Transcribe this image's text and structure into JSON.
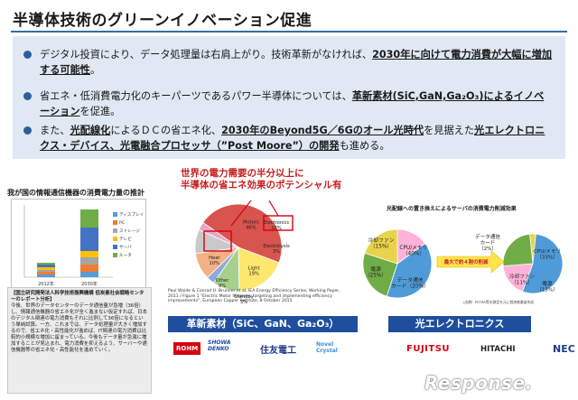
{
  "header": {
    "title": "半導体技術のグリーンイノベーション促進"
  },
  "bullets": [
    {
      "parts": [
        {
          "t": "デジタル投資により、データ処理量は右肩上がり。技術革新がなければ、",
          "s": "plain"
        },
        {
          "t": "2030年に向けて電力消費が大幅に増加する可能性",
          "s": "bold"
        },
        {
          "t": "。",
          "s": "plain"
        }
      ]
    },
    {
      "parts": [
        {
          "t": "省エネ・低消費電力化のキーパーツであるパワー半導体については、",
          "s": "plain"
        },
        {
          "t": "革新素材(SiC,GaN,Ga₂O₃)によるイノベーション",
          "s": "bold"
        },
        {
          "t": "を促進。",
          "s": "plain"
        }
      ]
    },
    {
      "parts": [
        {
          "t": "また、",
          "s": "plain"
        },
        {
          "t": "光配線化",
          "s": "bold"
        },
        {
          "t": "によるＤＣの省エネ化、",
          "s": "plain"
        },
        {
          "t": "2030年のBeyond5G／6Gのオール光時代",
          "s": "bold"
        },
        {
          "t": "を見据えた",
          "s": "plain"
        },
        {
          "t": "光エレクトロニクス・デバイス、光電融合プロセッサ（”Post Moore”）の開発",
          "s": "bold"
        },
        {
          "t": "も進める。",
          "s": "plain"
        }
      ]
    }
  ],
  "left_panel": {
    "title": "我が国の情報通信機器の消費電力量の推計",
    "chart": {
      "categories": [
        "2012年",
        "2030年"
      ],
      "legend": [
        "ディスプレイ",
        "PC",
        "ストレージ",
        "テレビ",
        "サーバ",
        "ルータ"
      ],
      "colors": [
        "#5b9bd5",
        "#ed7d31",
        "#a5a5a5",
        "#ffc000",
        "#4472c4",
        "#70ad47"
      ]
    },
    "box_heading": "【国立研究開発法人科学技術振興機構 低炭素社会戦略センターのレポート分析】",
    "box_text": "今後、世界のデータセンターのデータ通信量が急増（36倍）し、情報通信機器の省エネ化が全く進まない仮定すれば、日本のデジタル関連の電力消費もそれに比例して36倍になるという単純試算。一方、これまでは、データ処理量が大きく増加するので、省エネ化・高性能化が進めば、IT関連の電力消費は比較的小規模な増加に留まっている。今後もデータ量が急激に増加することが見込まれ、電力消費を抑えるよう、サーバーや通信機器等の省エネ化・高性能化を進めていく。"
  },
  "center": {
    "headline": [
      "世界の電力需要の半分以上に",
      "半導体の省エネ効果のポテンシャル有"
    ],
    "pie": [
      {
        "label": "Motors",
        "value": 46,
        "text": "Motors\n46%",
        "color": "#d9534f"
      },
      {
        "label": "Light",
        "value": 19,
        "text": "Light\n19%",
        "color": "#ffe66d"
      },
      {
        "label": "Electronics",
        "value": 10,
        "text": "Electronics\n10%",
        "color": "#a8d08d"
      },
      {
        "label": "Electrolysis",
        "value": 3,
        "text": "Electrolysis\n3%",
        "color": "#8faadc"
      },
      {
        "label": "Heat",
        "value": 10,
        "text": "Heat\n10%",
        "color": "#f4b183"
      },
      {
        "label": "Other",
        "value": 9,
        "text": "Other\n9%",
        "color": "#c9c9c9"
      },
      {
        "label": "Standby",
        "value": 3,
        "text": "Standby\n3%",
        "color": "#e6a7c9"
      }
    ],
    "citation": "Paul Waide & Conrad U. Brunner et al, IEA Energy Efficiency Series, Working Paper, 2011 / Figure 1 \"Electric Motor Systems: targeting and implementing efficiency improvements\", European Copper Institute, 8 October 2015",
    "bar_label": "革新素材（SiC、GaN、Ga₂O₃）",
    "logos": [
      "ROHM",
      "SHOWA DENKO",
      "住友電工",
      "Novel Crystal"
    ]
  },
  "right_panel": {
    "title": "光配線への置き換えによるサーバの消費電力削減効果",
    "left_pie": [
      {
        "label": "冷却ファン",
        "value": 15,
        "color": "#ffb2d9"
      },
      {
        "label": "CPU/メモリ",
        "value": 40,
        "color": "#4f9bd9"
      },
      {
        "label": "電源",
        "value": 25,
        "color": "#70ad47"
      },
      {
        "label": "データ通信カード",
        "value": 20,
        "color": "#e8d34a"
      }
    ],
    "right_pie": [
      {
        "label": "データ通信カード",
        "value": 2,
        "color": "#e8d34a"
      },
      {
        "label": "CPU/メモリ",
        "value": 33,
        "color": "#4f9bd9"
      },
      {
        "label": "冷却ファン",
        "value": 11,
        "color": "#ffb2d9"
      },
      {
        "label": "電源",
        "value": 15,
        "color": "#70ad47"
      }
    ],
    "texts": {
      "l_fan": "冷却ファン\n（15%）",
      "l_cpu": "CPU/メモリ\n（40%）",
      "l_power": "電源\n（25%）",
      "l_card": "データ通信\nカード（20%）",
      "r_card": "データ通信\nカード\n（2%）",
      "r_cpu": "CPU/メモリ\n（33%）",
      "r_fan": "冷却ファン\n（11%）",
      "r_power": "電源\n（15%）",
      "arrow": "最大で約４割の削減",
      "source": "(出典）PETRA等の測定を元に経済産業省作成"
    },
    "bar_label": "光エレクトロニクス",
    "logos": [
      "FUJITSU",
      "HITACHI",
      "NEC"
    ]
  },
  "watermark": "Response."
}
